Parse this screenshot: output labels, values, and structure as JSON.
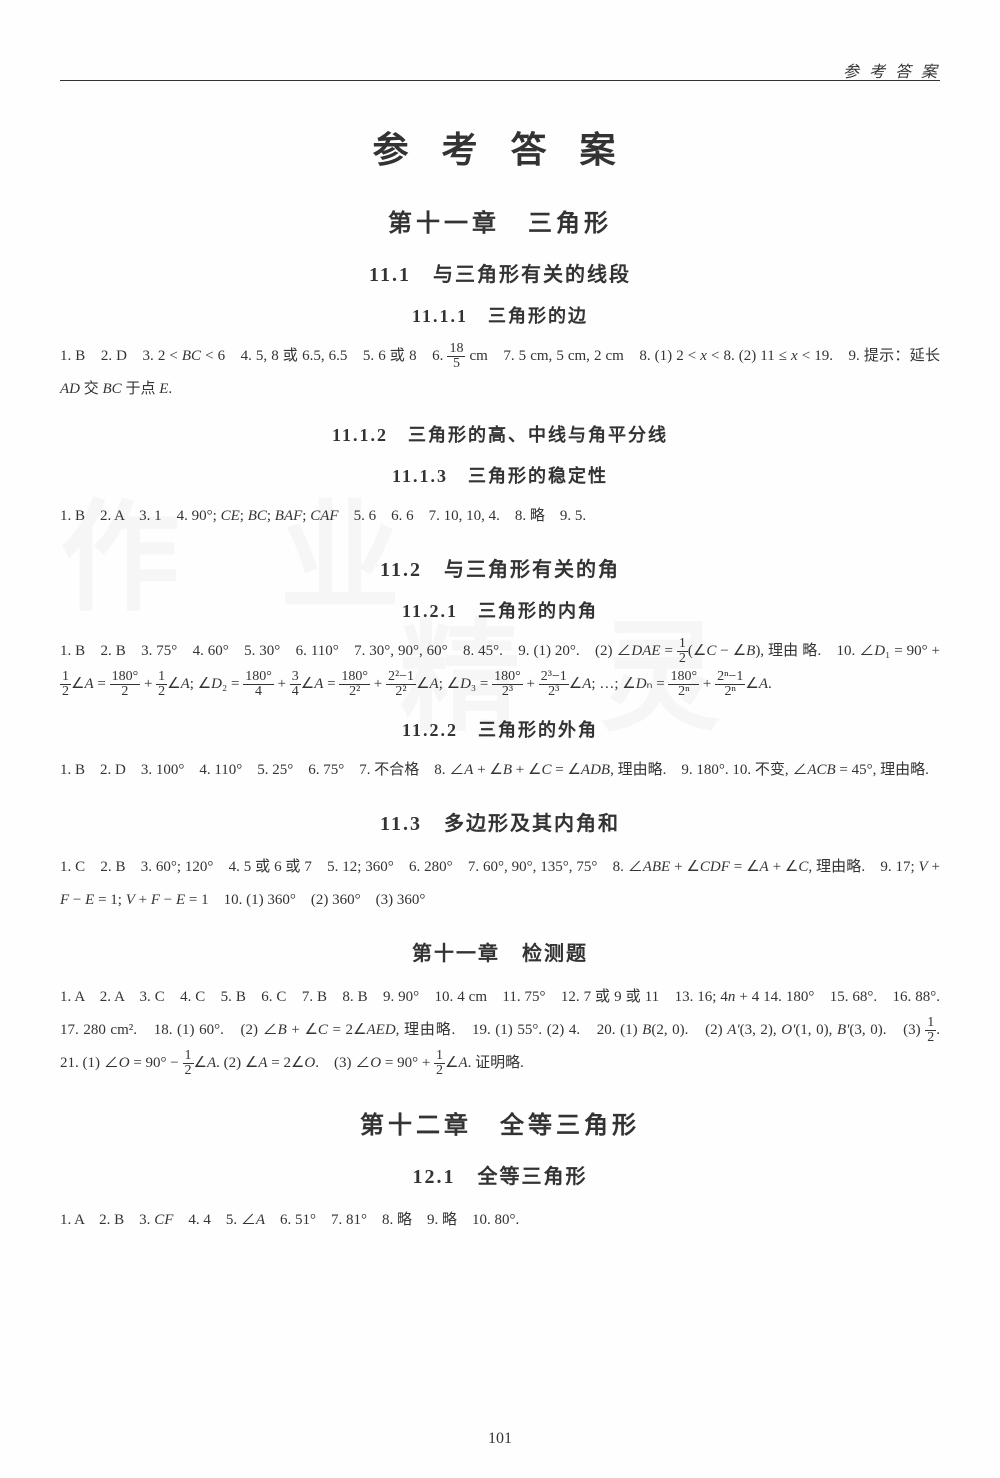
{
  "header": {
    "label": "参 考 答 案"
  },
  "main_title": "参 考 答 案",
  "chapters": [
    {
      "title": "第十一章　三角形",
      "sections": [
        {
          "title": "11.1　与三角形有关的线段",
          "subsections": [
            {
              "title": "11.1.1　三角形的边",
              "answers": "1. B　2. D　3. 2 < BC < 6　4. 5, 8 或 6.5, 6.5　5. 6 或 8　6. 18/5 cm　7. 5 cm, 5 cm, 2 cm　8. (1) 2 < x < 8.　(2) 11 ≤ x < 19.　9. 提示：延长 AD 交 BC 于点 E."
            },
            {
              "title": "11.1.2　三角形的高、中线与角平分线",
              "answers": ""
            },
            {
              "title": "11.1.3　三角形的稳定性",
              "answers": "1. B　2. A　3. 1　4. 90°; CE; BC; BAF; CAF　5. 6　6. 6　7. 10, 10, 4.　8. 略　9. 5."
            }
          ]
        },
        {
          "title": "11.2　与三角形有关的角",
          "subsections": [
            {
              "title": "11.2.1　三角形的内角",
              "answers": "1. B　2. B　3. 75°　4. 60°　5. 30°　6. 110°　7. 30°, 90°, 60°　8. 45°.　9. (1) 20°.　(2) ∠DAE = ½(∠C − ∠B), 理由略.　10. ∠D₁ = 90° + ½∠A = 180°/2 + ½∠A; ∠D₂ = 180°/4 + ¾∠A = 180°/2² + (2²−1)/2²∠A; ∠D₃ = 180°/2³ + (2³−1)/2³∠A; …; ∠Dₙ = 180°/2ⁿ + (2ⁿ−1)/2ⁿ∠A."
            },
            {
              "title": "11.2.2　三角形的外角",
              "answers": "1. B　2. D　3. 100°　4. 110°　5. 25°　6. 75°　7. 不合格　8. ∠A + ∠B + ∠C = ∠ADB, 理由略.　9. 180°.　10. 不变, ∠ACB = 45°, 理由略."
            }
          ]
        },
        {
          "title": "11.3　多边形及其内角和",
          "answers": "1. C　2. B　3. 60°; 120°　4. 5 或 6 或 7　5. 12; 360°　6. 280°　7. 60°, 90°, 135°, 75°　8. ∠ABE + ∠CDF = ∠A + ∠C, 理由略.　9. 17; V + F − E = 1; V + F − E = 1　10. (1) 360°　(2) 360°　(3) 360°"
        },
        {
          "title": "第十一章　检测题",
          "answers": "1. A　2. A　3. C　4. C　5. B　6. C　7. B　8. B　9. 90°　10. 4 cm　11. 75°　12. 7 或 9 或 11　13. 16; 4n + 4　14. 180°　15. 68°.　16. 88°.　17. 280 cm².　18. (1) 60°.　(2) ∠B + ∠C = 2∠AED, 理由略.　19. (1) 55°.　(2) 4.　20. (1) B(2, 0).　(2) A'(3, 2), O'(1, 0), B'(3, 0).　(3) ½.　21. (1) ∠O = 90° − ½∠A.　(2) ∠A = 2∠O.　(3) ∠O = 90° + ½∠A. 证明略."
        }
      ]
    },
    {
      "title": "第十二章　全等三角形",
      "sections": [
        {
          "title": "12.1　全等三角形",
          "answers": "1. A　2. B　3. CF　4. 4　5. ∠A　6. 51°　7. 81°　8. 略　9. 略　10. 80°."
        }
      ]
    }
  ],
  "page_number": "101",
  "watermark": {
    "c1": "作",
    "c2": "业",
    "c3": "精",
    "c4": "灵"
  },
  "styling": {
    "background_color": "#fefefe",
    "text_color": "#333333",
    "title_fontsize": 36,
    "chapter_fontsize": 24,
    "section_fontsize": 20,
    "subsection_fontsize": 18,
    "body_fontsize": 15,
    "watermark_color": "rgba(200,200,200,0.15)",
    "font_family": "SimSun"
  }
}
